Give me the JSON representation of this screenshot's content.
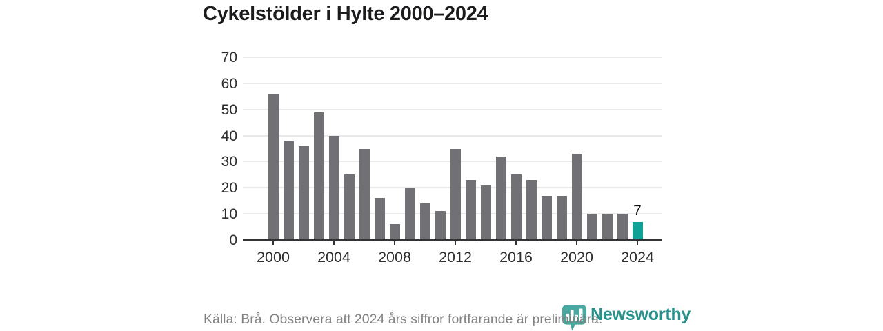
{
  "title": "Cykelstölder i Hylte 2000–2024",
  "chart_data": {
    "type": "bar",
    "title": "Cykelstölder i Hylte 2000–2024",
    "x": [
      2000,
      2001,
      2002,
      2003,
      2004,
      2005,
      2006,
      2007,
      2008,
      2009,
      2010,
      2011,
      2012,
      2013,
      2014,
      2015,
      2016,
      2017,
      2018,
      2019,
      2020,
      2021,
      2022,
      2023,
      2024
    ],
    "values": [
      56,
      38,
      36,
      49,
      40,
      25,
      35,
      16,
      6,
      20,
      14,
      11,
      35,
      23,
      21,
      32,
      25,
      23,
      17,
      17,
      33,
      10,
      10,
      10,
      7
    ],
    "xlabel": "",
    "ylabel": "",
    "ylim": [
      0,
      70
    ],
    "yticks": [
      0,
      10,
      20,
      30,
      40,
      50,
      60,
      70
    ],
    "xticks": [
      2000,
      2004,
      2008,
      2012,
      2016,
      2020,
      2024
    ],
    "grid": true,
    "legend": false,
    "bar_color": "#707075",
    "highlight_color": "#0fa096",
    "highlight_index": 24,
    "highlight_value_label": "7"
  },
  "footer": {
    "text": "Källa: Brå. Observera att 2024 års siffror fortfarande är preliminära."
  },
  "logo": {
    "text": "Newsworthy",
    "icon": "newsworthy-pin-barchart-icon",
    "icon_color": "#4aa8a0",
    "text_color": "#27918c"
  }
}
